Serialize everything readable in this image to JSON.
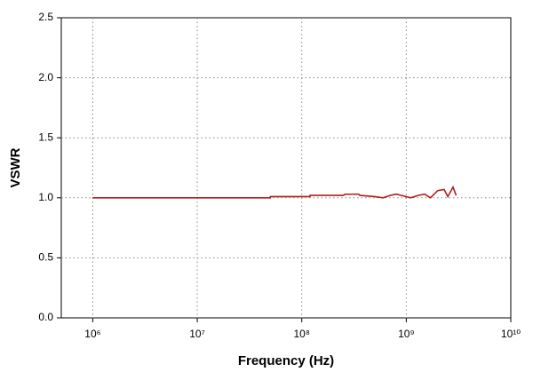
{
  "chart_data": {
    "type": "line",
    "x_label": "Frequency (Hz)",
    "y_label": "VSWR",
    "xscale": "log",
    "grid": true,
    "xlim": [
      500000,
      10000000000
    ],
    "xticks": [
      {
        "value": 1000000,
        "label": "10⁶"
      },
      {
        "value": 10000000,
        "label": "10⁷"
      },
      {
        "value": 100000000,
        "label": "10⁸"
      },
      {
        "value": 1000000000,
        "label": "10⁹"
      },
      {
        "value": 10000000000,
        "label": "10¹⁰"
      }
    ],
    "ylim": [
      0,
      2.5
    ],
    "yticks": [
      {
        "value": 0,
        "label": "0.0"
      },
      0.5,
      {
        "value": 1,
        "label": "1.0"
      },
      1.5,
      {
        "value": 2,
        "label": "2.0"
      },
      2.5
    ],
    "x": [
      1000000,
      50000000,
      50000000,
      120000000,
      120000000,
      250000000,
      260000000,
      350000000,
      360000000,
      500000000,
      600000000,
      700000000,
      800000000,
      900000000,
      1100000000,
      1300000000,
      1500000000,
      1700000000,
      2000000000,
      2300000000,
      2500000000,
      2800000000,
      3000000000
    ],
    "series": [
      {
        "color": "#b01c1c",
        "values": [
          1.0,
          1.0,
          1.01,
          1.01,
          1.02,
          1.02,
          1.03,
          1.03,
          1.02,
          1.01,
          1.0,
          1.02,
          1.03,
          1.02,
          1.0,
          1.02,
          1.03,
          1.0,
          1.06,
          1.07,
          1.01,
          1.09,
          1.02
        ]
      }
    ]
  }
}
